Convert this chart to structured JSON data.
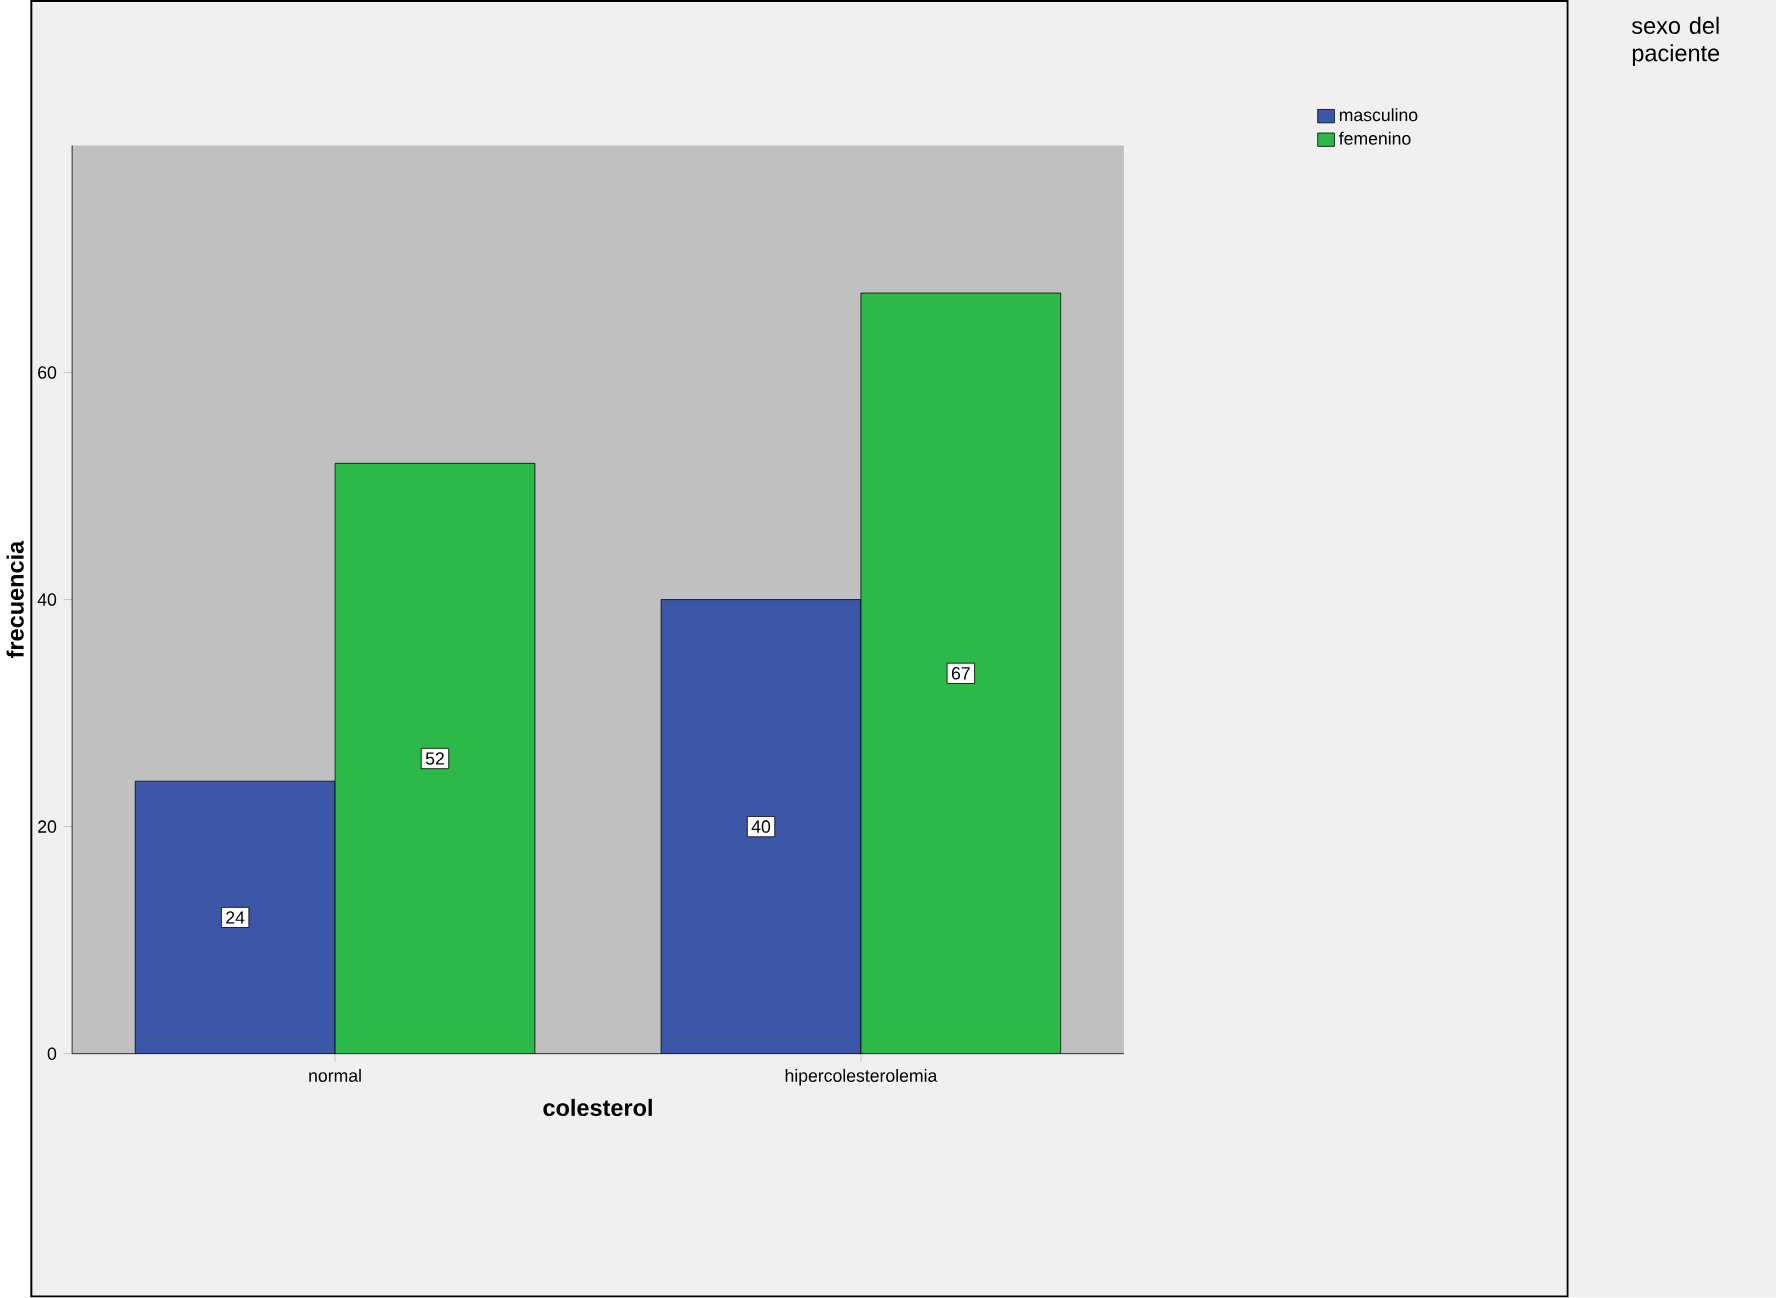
{
  "chart_data": {
    "type": "bar",
    "xlabel": "colesterol",
    "ylabel": "frecuencia",
    "legend_title": "sexo del paciente",
    "categories": [
      "normal",
      "hipercolesterolemia"
    ],
    "series": [
      {
        "name": "masculino",
        "color": "#3c56a8",
        "values": [
          24,
          40
        ]
      },
      {
        "name": "femenino",
        "color": "#2db84a",
        "values": [
          52,
          67
        ]
      }
    ],
    "ylim": [
      0,
      80
    ],
    "yticks": [
      0,
      20,
      40,
      60
    ],
    "data_labels": true,
    "legend": "top right",
    "grid": false
  }
}
